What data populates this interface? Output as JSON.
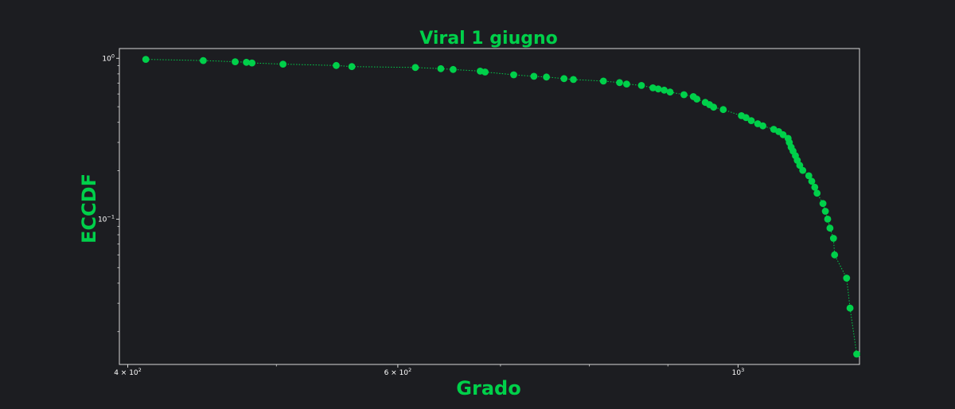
{
  "chart_data": {
    "type": "scatter",
    "title": "Viral 1 giugno",
    "xlabel": "Grado",
    "ylabel": "ECCDF",
    "xscale": "log",
    "yscale": "log",
    "xlim": [
      395,
      1200
    ],
    "ylim": [
      0.0125,
      1.15
    ],
    "grid": false,
    "legend": "none",
    "colors": {
      "background": "#1c1d21",
      "series": "#00d04a",
      "axes": "#d8d8d8",
      "text": "#ffffff"
    },
    "line_style": "dotted",
    "x_ticks": [
      {
        "value": 400,
        "base": "4 × 10",
        "exp": "2"
      },
      {
        "value": 600,
        "base": "6 × 10",
        "exp": "2"
      },
      {
        "value": 1000,
        "base": "10",
        "exp": "3"
      }
    ],
    "x_minor_ticks": [
      500,
      700,
      800,
      900
    ],
    "y_ticks": [
      {
        "value": 1,
        "base": "10",
        "exp": "0"
      },
      {
        "value": 0.1,
        "base": "10",
        "exp": "−1"
      }
    ],
    "series": [
      {
        "x": [
          411,
          448,
          470,
          478,
          482,
          505,
          547,
          560,
          616,
          640,
          652,
          679,
          684,
          714,
          736,
          750,
          770,
          781,
          817,
          837,
          846,
          865,
          880,
          887,
          895,
          903,
          922,
          935,
          940,
          952,
          958,
          964,
          978,
          1005,
          1012,
          1020,
          1030,
          1038,
          1055,
          1063,
          1070,
          1078,
          1080,
          1083,
          1086,
          1090,
          1093,
          1097,
          1102,
          1112,
          1117,
          1122,
          1126,
          1136,
          1140,
          1144,
          1148,
          1154,
          1156,
          1177,
          1183,
          1195
        ],
        "y": [
          0.985,
          0.968,
          0.952,
          0.944,
          0.936,
          0.92,
          0.902,
          0.888,
          0.877,
          0.862,
          0.852,
          0.832,
          0.822,
          0.79,
          0.773,
          0.765,
          0.748,
          0.738,
          0.722,
          0.706,
          0.692,
          0.678,
          0.655,
          0.645,
          0.634,
          0.617,
          0.594,
          0.578,
          0.558,
          0.532,
          0.515,
          0.497,
          0.48,
          0.44,
          0.428,
          0.41,
          0.392,
          0.38,
          0.362,
          0.35,
          0.335,
          0.318,
          0.3,
          0.28,
          0.265,
          0.248,
          0.232,
          0.216,
          0.201,
          0.186,
          0.172,
          0.158,
          0.145,
          0.125,
          0.112,
          0.1,
          0.088,
          0.076,
          0.06,
          0.043,
          0.028,
          0.0145
        ]
      }
    ]
  }
}
